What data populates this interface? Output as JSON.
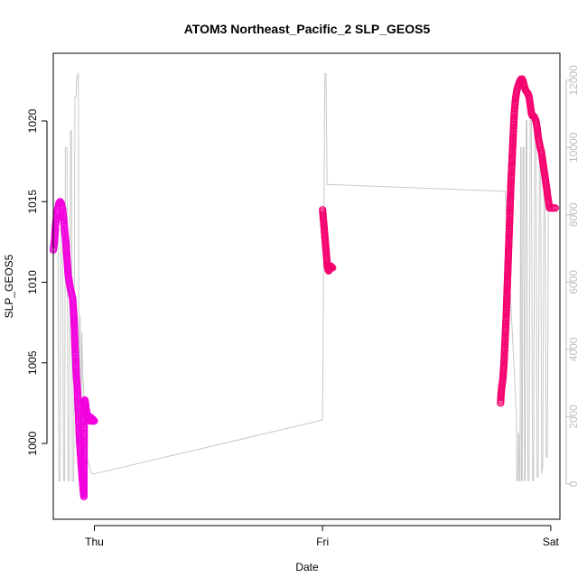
{
  "chart_data": {
    "type": "line",
    "title": "ATOM3 Northeast_Pacific_2 SLP_GEOS5",
    "xlabel": "Date",
    "ylabel": "SLP_GEOS5",
    "x_ticks": [
      "Thu",
      "Fri",
      "Sat"
    ],
    "y_ticks": [
      1000,
      1005,
      1010,
      1015,
      1020
    ],
    "y_right_ticks": [
      0,
      2000,
      4000,
      6000,
      8000,
      10000,
      12000
    ],
    "xlim": [
      -0.18,
      2.04
    ],
    "ylim": [
      995.3,
      1024.2
    ],
    "y_right_lim": [
      -1050,
      12800
    ],
    "colors": {
      "altitude_line": "#c8c8c8",
      "slp_early": "#f200dd",
      "slp_late": "#f5006e",
      "axes": "#000000",
      "right_axis": "#bdbdbd"
    },
    "altitude_series": {
      "x": [
        -0.17,
        -0.168,
        -0.16,
        -0.156,
        -0.15,
        -0.148,
        -0.14,
        -0.135,
        -0.13,
        -0.127,
        -0.12,
        -0.115,
        -0.11,
        -0.105,
        -0.1,
        -0.097,
        -0.09,
        -0.085,
        -0.08,
        -0.078,
        -0.075,
        -0.07,
        -0.068,
        -0.066,
        -0.062,
        -0.06,
        -0.058,
        -0.055,
        -0.05,
        -0.048,
        -0.045,
        -0.042,
        -0.04,
        -0.035,
        -0.03,
        -0.025,
        -0.02,
        -0.015,
        -0.01,
        0.0,
        1.0,
        1.01,
        1.015,
        1.02,
        1.8,
        1.85,
        1.8505,
        1.855,
        1.858,
        1.86,
        1.862,
        1.865,
        1.868,
        1.87,
        1.872,
        1.875,
        1.878,
        1.882,
        1.885,
        1.888,
        1.892,
        1.895,
        1.9,
        1.905,
        1.91,
        1.915,
        1.92,
        1.925,
        1.93,
        1.935,
        1.94,
        1.945,
        1.95,
        1.955,
        1.96,
        1.965,
        1.97,
        1.975,
        1.98,
        1.985,
        1.99,
        1.995,
        2.0
      ],
      "y": [
        7000,
        7500,
        7600,
        100,
        100,
        7600,
        7600,
        100,
        100,
        10000,
        10000,
        100,
        100,
        10500,
        10500,
        100,
        100,
        11500,
        11500,
        12000,
        12100,
        12200,
        3000,
        3000,
        5000,
        500,
        500,
        4500,
        3000,
        3000,
        2000,
        1500,
        1200,
        900,
        700,
        600,
        500,
        350,
        300,
        300,
        1900,
        12200,
        12200,
        8900,
        8700,
        2000,
        100,
        100,
        1500,
        1500,
        100,
        100,
        10000,
        10000,
        100,
        100,
        10000,
        10000,
        100,
        100,
        10800,
        10800,
        100,
        100,
        10800,
        10800,
        100,
        100,
        10500,
        10500,
        200,
        200,
        10000,
        10000,
        300,
        500,
        8800,
        8700,
        800,
        800,
        8800,
        8700,
        8700
      ]
    },
    "series": [
      {
        "x": [
          -0.18,
          -0.175,
          -0.17,
          -0.165,
          -0.16,
          -0.155,
          -0.15,
          -0.145,
          -0.14,
          -0.135,
          -0.13,
          -0.125,
          -0.12,
          -0.115,
          -0.11,
          -0.105,
          -0.1,
          -0.095,
          -0.09,
          -0.087,
          -0.085,
          -0.082,
          -0.08,
          -0.078,
          -0.075,
          -0.073,
          -0.07,
          -0.068,
          -0.066,
          -0.064,
          -0.062,
          -0.06,
          -0.058,
          -0.056,
          -0.054,
          -0.052,
          -0.05,
          -0.048,
          -0.046,
          -0.044,
          -0.042,
          -0.04,
          -0.038,
          -0.036,
          -0.034,
          -0.032,
          -0.03,
          -0.028,
          -0.026,
          -0.024,
          -0.022,
          -0.02,
          -0.018,
          -0.016,
          -0.014,
          -0.012,
          -0.01,
          -0.008,
          -0.006,
          -0.004,
          -0.002,
          0.0
        ],
        "y": [
          1012.0,
          1012.5,
          1013.5,
          1014.2,
          1014.6,
          1014.9,
          1015.0,
          1014.9,
          1014.6,
          1014.0,
          1013.2,
          1012.5,
          1011.5,
          1010.5,
          1010.0,
          1009.6,
          1009.3,
          1009.0,
          1008.0,
          1007.0,
          1006.0,
          1005.2,
          1004.5,
          1004.0,
          1003.5,
          1002.8,
          1002.0,
          1001.2,
          1000.5,
          1000.0,
          999.6,
          999.2,
          998.8,
          998.4,
          998.0,
          997.7,
          997.3,
          997.0,
          996.7,
          1002.5,
          1002.7,
          1002.6,
          1002.4,
          1002.1,
          1002.0,
          1001.8,
          1001.6,
          1001.5,
          1001.6,
          1001.7,
          1001.6,
          1001.5,
          1001.4,
          1001.5,
          1001.6,
          1001.5,
          1001.4,
          1001.4,
          1001.5,
          1001.4,
          1001.4,
          1001.4
        ]
      },
      {
        "x": [
          1.0,
          1.003,
          1.006,
          1.009,
          1.012,
          1.015,
          1.018,
          1.021,
          1.024,
          1.027,
          1.03,
          1.033,
          1.036,
          1.04,
          1.044
        ],
        "y": [
          1014.5,
          1014.0,
          1013.5,
          1013.0,
          1012.5,
          1012.0,
          1011.5,
          1011.0,
          1010.8,
          1010.7,
          1010.8,
          1011.0,
          1011.0,
          1010.9,
          1010.9
        ],
        "gap_after": 15
      },
      {
        "x": [
          1.78,
          1.782,
          1.785,
          1.79,
          1.795,
          1.8,
          1.805,
          1.81,
          1.815,
          1.82,
          1.825,
          1.83,
          1.835,
          1.84,
          1.845,
          1.85,
          1.855,
          1.86,
          1.865,
          1.87,
          1.875,
          1.88,
          1.885,
          1.89,
          1.895,
          1.9,
          1.905,
          1.91,
          1.915,
          1.92,
          1.925,
          1.93,
          1.935,
          1.94,
          1.945,
          1.95,
          1.955,
          1.96,
          1.965,
          1.97,
          1.975,
          1.98,
          1.985,
          1.99,
          1.995,
          2.0,
          2.005,
          2.01,
          2.015,
          2.02
        ],
        "y": [
          1002.5,
          1003.0,
          1003.5,
          1004.0,
          1005.0,
          1006.5,
          1008.0,
          1010.0,
          1012.0,
          1014.0,
          1016.0,
          1017.5,
          1019.0,
          1020.5,
          1021.3,
          1021.8,
          1022.1,
          1022.3,
          1022.5,
          1022.6,
          1022.6,
          1022.4,
          1022.1,
          1021.9,
          1021.8,
          1021.7,
          1021.5,
          1021.0,
          1020.5,
          1020.3,
          1020.3,
          1020.2,
          1020.0,
          1019.6,
          1019.0,
          1018.6,
          1018.3,
          1018.0,
          1017.5,
          1017.0,
          1016.5,
          1016.0,
          1015.5,
          1015.0,
          1014.6,
          1014.6,
          1014.6,
          1014.6,
          1014.6,
          1014.6
        ]
      }
    ]
  }
}
